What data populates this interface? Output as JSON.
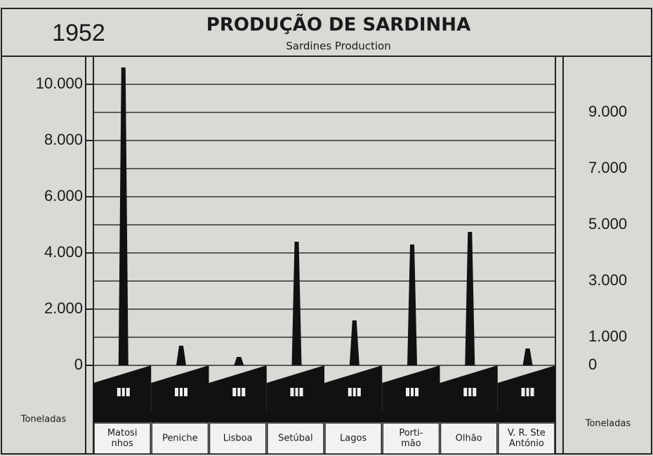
{
  "chart_data": {
    "type": "chimney",
    "title": "PRODUÇÃO DE SARDINHA",
    "subtitle": "Sardines Production",
    "year": "1952",
    "y_label": "Toneladas",
    "categories": [
      [
        "Matosi",
        "nhos"
      ],
      [
        "Peniche"
      ],
      [
        "Lisboa"
      ],
      [
        "Setúbal"
      ],
      [
        "Lagos"
      ],
      [
        "Porti-",
        "mão"
      ],
      [
        "Olhão"
      ],
      [
        "V. R. Ste",
        "António"
      ]
    ],
    "values": [
      10600,
      700,
      300,
      4400,
      1600,
      4300,
      4750,
      600
    ],
    "color": "#111111",
    "ylim": [
      0,
      10800
    ],
    "yticks": [
      0,
      {
        "value": 2000,
        "label": "2.000"
      },
      {
        "value": 4000,
        "label": "4.000"
      },
      {
        "value": 6000,
        "label": "6.000"
      },
      {
        "value": 8000,
        "label": "8.000"
      },
      {
        "value": 10000,
        "label": "10.000"
      }
    ],
    "y2lim": [
      0,
      10800
    ],
    "y2ticks": [
      0,
      {
        "value": 1000,
        "label": "1.000"
      },
      {
        "value": 3000,
        "label": "3.000"
      },
      {
        "value": 5000,
        "label": "5.000"
      },
      {
        "value": 7000,
        "label": "7.000"
      },
      {
        "value": 9000,
        "label": "9.000"
      }
    ],
    "grid": true
  }
}
